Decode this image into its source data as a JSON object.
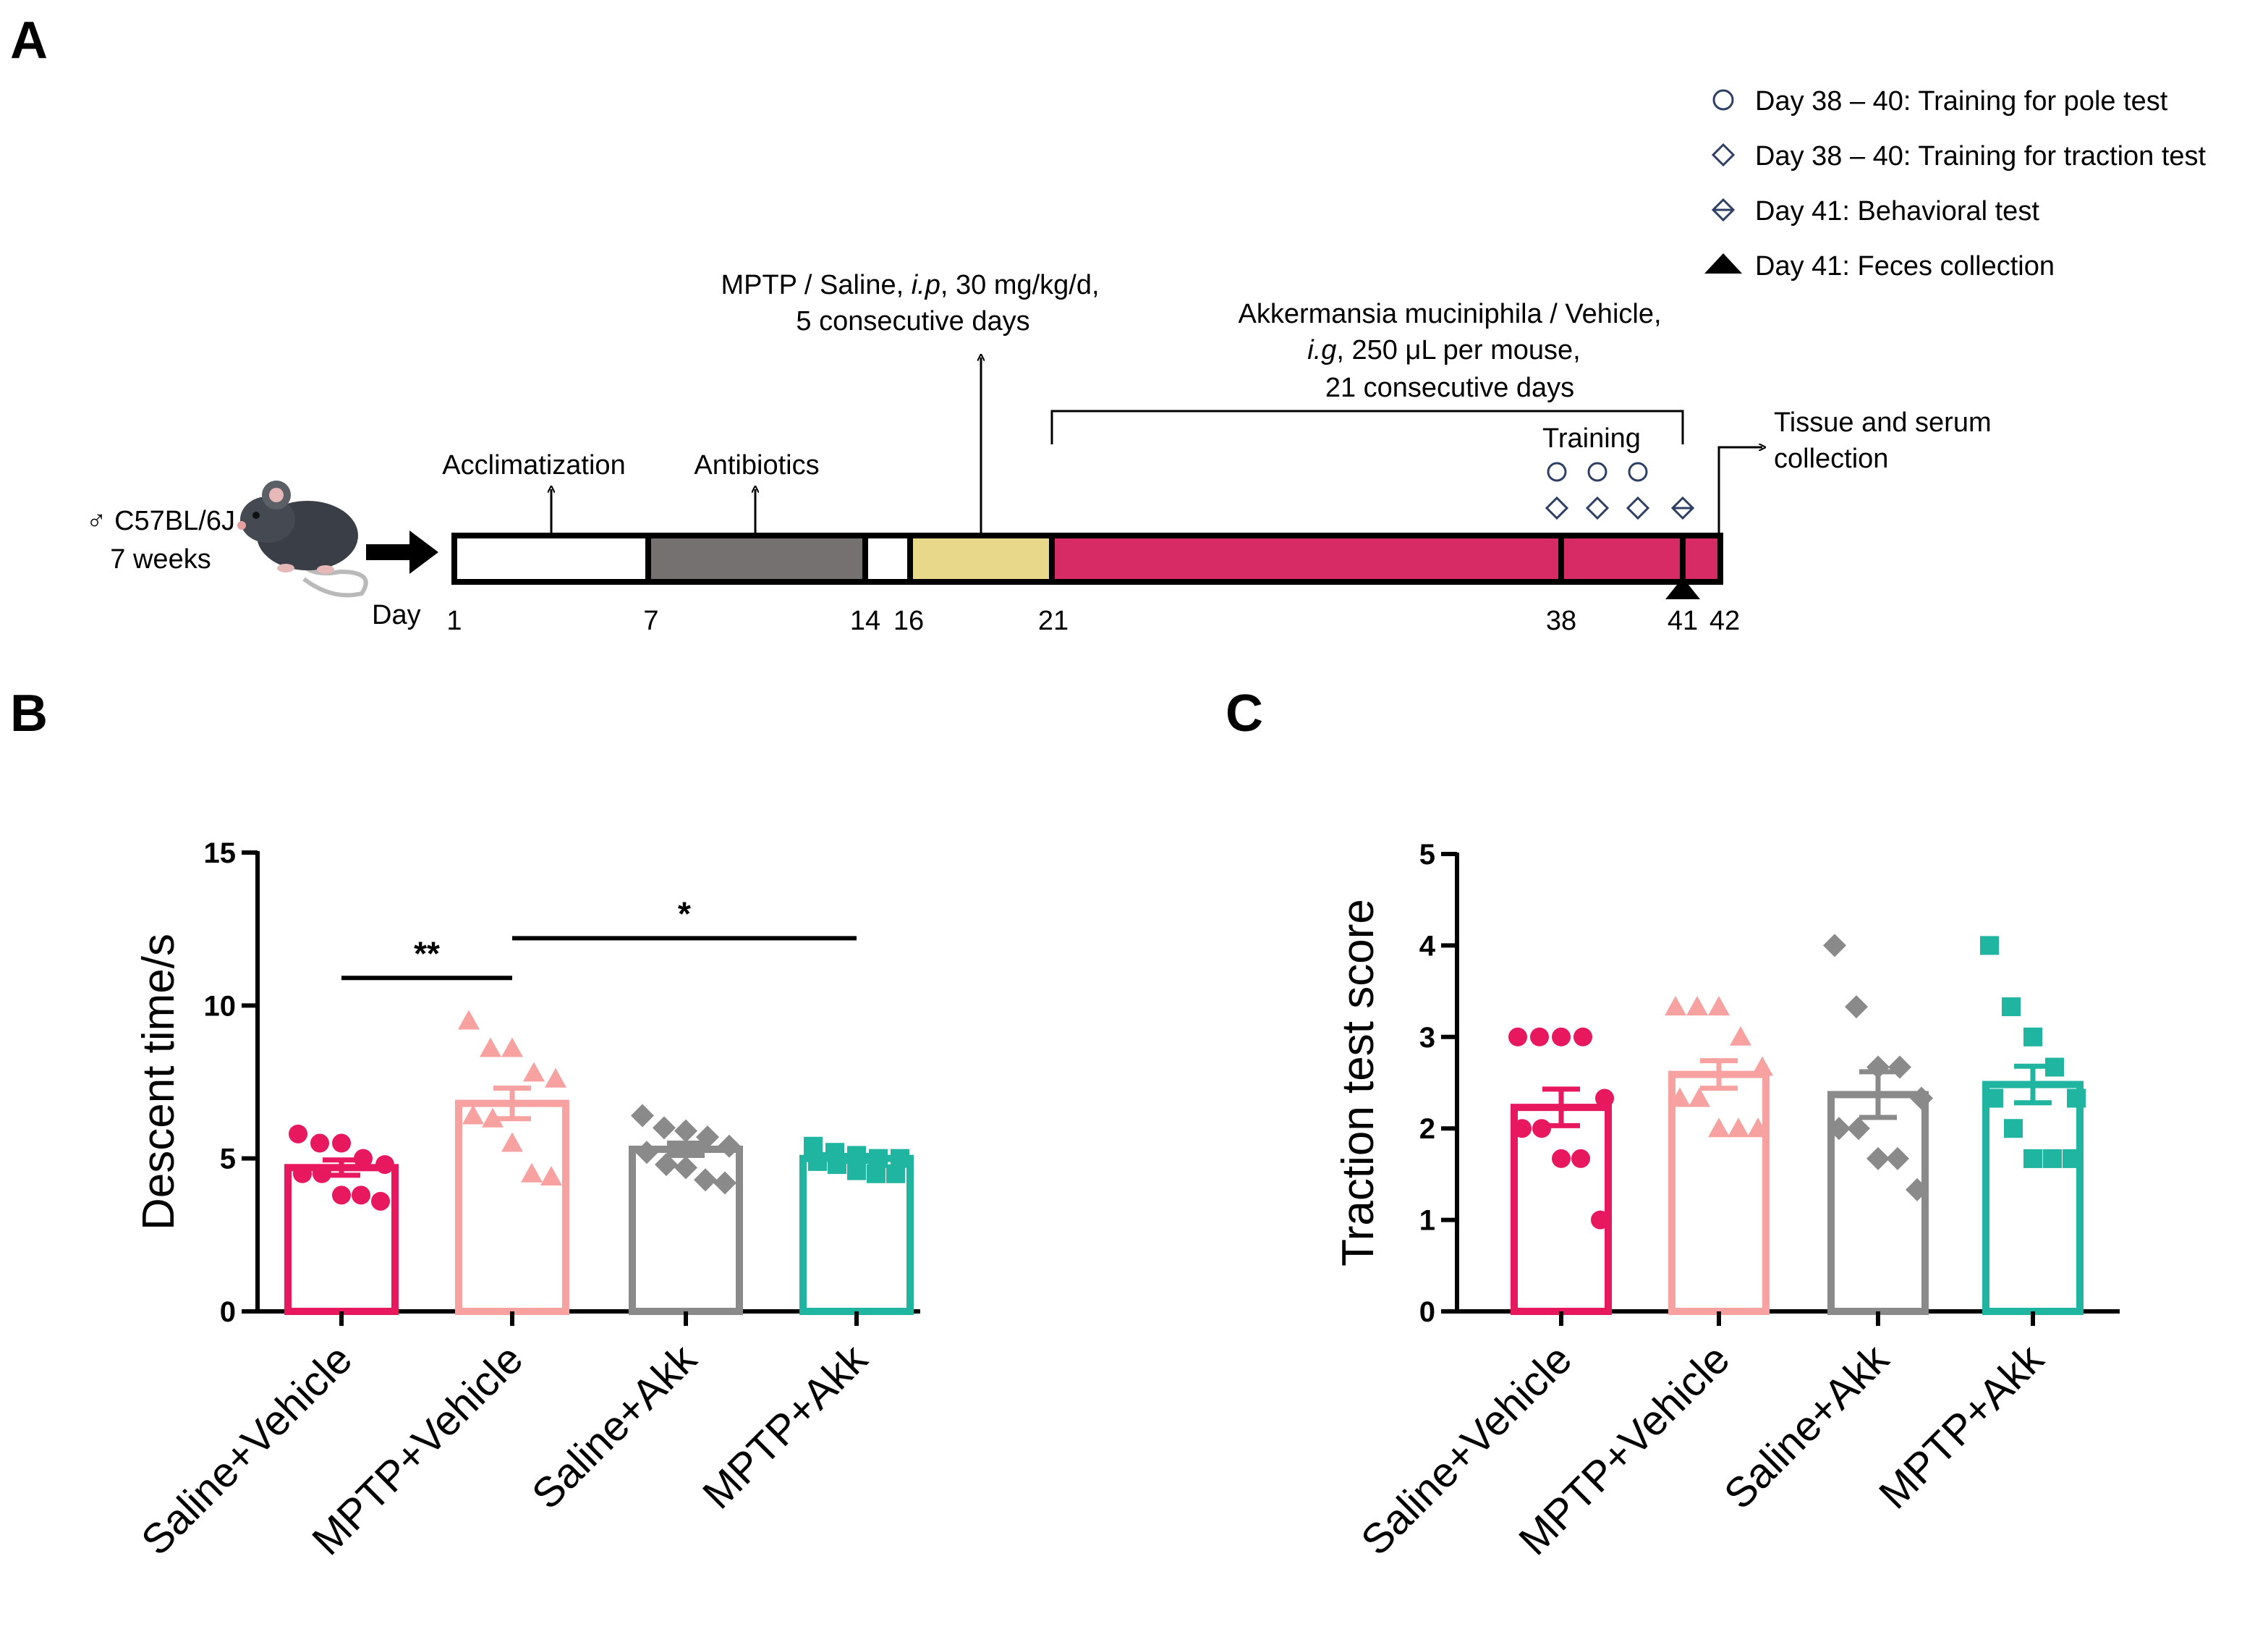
{
  "panel_labels": {
    "a": "A",
    "b": "B",
    "c": "C"
  },
  "colors": {
    "saline_vehicle": "#e8185f",
    "mptp_vehicle": "#f7a2a0",
    "saline_akk": "#8a8a8a",
    "mptp_akk": "#1fb5a0",
    "timeline_antibiotics": "#757171",
    "timeline_mptp": "#e8d98a",
    "timeline_akk": "#d62b64",
    "legend_marker": "#2e3f66"
  },
  "timeline": {
    "subject_line1": "♂ C57BL/6J",
    "subject_line2": "7 weeks",
    "day_label": "Day",
    "day_ticks": [
      "1",
      "7",
      "14",
      "16",
      "21",
      "38",
      "41",
      "42"
    ],
    "acclimatization": "Acclimatization",
    "antibiotics": "Antibiotics",
    "mptp_line1_a": "MPTP / Saline, ",
    "mptp_line1_ip": "i.p",
    "mptp_line1_b": ", 30 mg/kg/d,",
    "mptp_line2": "5 consecutive days",
    "akk_line1": "Akkermansia muciniphila / Vehicle,",
    "akk_line2_ig": "i.g",
    "akk_line2_rest": ", 250 μL per mouse,",
    "akk_line3": "21 consecutive days",
    "training": "Training",
    "tissue_line1": "Tissue and serum",
    "tissue_line2": "collection",
    "legend": [
      {
        "marker": "circle",
        "text": "Day 38 – 40: Training for pole test"
      },
      {
        "marker": "diamond",
        "text": "Day 38 – 40: Training for traction test"
      },
      {
        "marker": "diamond-line",
        "text": "Day 41: Behavioral test"
      },
      {
        "marker": "triangle",
        "text": "Day 41: Feces collection"
      }
    ]
  },
  "chart_data": [
    {
      "type": "bar",
      "panel": "B",
      "ylabel": "Descent time/s",
      "ylim": [
        0,
        15
      ],
      "yticks": [
        0,
        5,
        10,
        15
      ],
      "categories": [
        "Saline+Vehicle",
        "MPTP+Vehicle",
        "Saline+Akk",
        "MPTP+Akk"
      ],
      "means": [
        4.7,
        6.8,
        5.3,
        5.0
      ],
      "sem": [
        0.25,
        0.5,
        0.2,
        0.1
      ],
      "markers": [
        "circle",
        "triangle",
        "diamond",
        "square"
      ],
      "points": [
        [
          5.8,
          5.5,
          5.5,
          5.0,
          4.8,
          4.5,
          4.5,
          3.8,
          3.8,
          3.6
        ],
        [
          9.5,
          8.6,
          8.6,
          7.8,
          7.6,
          6.4,
          6.3,
          5.5,
          4.5,
          4.4
        ],
        [
          6.4,
          6.0,
          5.9,
          5.7,
          5.4,
          5.2,
          4.8,
          4.7,
          4.3,
          4.2
        ],
        [
          5.4,
          5.2,
          5.1,
          5.0,
          5.0,
          4.9,
          4.8,
          4.6,
          4.5,
          4.5
        ]
      ],
      "significance": [
        {
          "from": 0,
          "to": 1,
          "label": "**",
          "y": 10.9
        },
        {
          "from": 1,
          "to": 3,
          "label": "*",
          "y": 12.2
        }
      ]
    },
    {
      "type": "bar",
      "panel": "C",
      "ylabel": "Traction test score",
      "ylim": [
        0,
        5
      ],
      "yticks": [
        0,
        1,
        2,
        3,
        4,
        5
      ],
      "categories": [
        "Saline+Vehicle",
        "MPTP+Vehicle",
        "Saline+Akk",
        "MPTP+Akk"
      ],
      "means": [
        2.23,
        2.59,
        2.37,
        2.48
      ],
      "sem": [
        0.2,
        0.15,
        0.25,
        0.2
      ],
      "markers": [
        "circle",
        "triangle",
        "diamond",
        "square"
      ],
      "points": [
        [
          3.0,
          3.0,
          3.0,
          3.0,
          2.33,
          2.0,
          2.0,
          1.67,
          1.67,
          1.0
        ],
        [
          3.33,
          3.33,
          3.33,
          3.0,
          2.67,
          2.33,
          2.33,
          2.0,
          2.0,
          2.0
        ],
        [
          4.0,
          3.33,
          2.67,
          2.67,
          2.33,
          2.0,
          2.0,
          1.67,
          1.67,
          1.33
        ],
        [
          4.0,
          3.33,
          3.0,
          2.67,
          2.33,
          2.33,
          2.0,
          1.67,
          1.67,
          1.67
        ]
      ],
      "significance": []
    }
  ]
}
